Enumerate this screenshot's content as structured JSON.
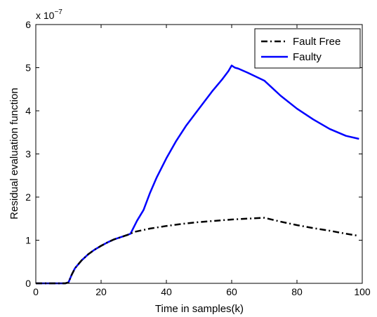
{
  "chart_data": {
    "type": "line",
    "title": "",
    "xlabel": "Time in samples(k)",
    "ylabel": "Residual evaluation function",
    "xlim": [
      0,
      100
    ],
    "ylim": [
      0,
      6
    ],
    "xticks": [
      "0",
      "20",
      "40",
      "60",
      "80",
      "100"
    ],
    "yticks": [
      "0",
      "1",
      "2",
      "3",
      "4",
      "5",
      "6"
    ],
    "y_multiplier": {
      "base": "x 10",
      "exponent": "−7"
    },
    "grid": false,
    "legend_position": "top-right",
    "series": [
      {
        "name": "Fault Free",
        "color": "#000000",
        "style": "dash-dot",
        "x": [
          0,
          9,
          10,
          11,
          12,
          14,
          16,
          18,
          20,
          22,
          24,
          26,
          28,
          29,
          30,
          35,
          40,
          45,
          50,
          55,
          60,
          65,
          70,
          75,
          80,
          85,
          90,
          95,
          99
        ],
        "y": [
          0,
          0,
          0.02,
          0.2,
          0.35,
          0.53,
          0.67,
          0.78,
          0.87,
          0.95,
          1.02,
          1.07,
          1.12,
          1.15,
          1.19,
          1.27,
          1.33,
          1.38,
          1.42,
          1.45,
          1.48,
          1.5,
          1.52,
          1.43,
          1.35,
          1.28,
          1.22,
          1.15,
          1.1
        ]
      },
      {
        "name": "Faulty",
        "color": "#0000ff",
        "style": "solid",
        "x": [
          0,
          9,
          10,
          11,
          12,
          14,
          16,
          18,
          20,
          22,
          24,
          26,
          28,
          29,
          30,
          31,
          33,
          35,
          37,
          40,
          43,
          46,
          50,
          54,
          57,
          59,
          60,
          61,
          62,
          65,
          70,
          75,
          80,
          85,
          90,
          95,
          99
        ],
        "y": [
          0,
          0,
          0.02,
          0.2,
          0.35,
          0.53,
          0.67,
          0.78,
          0.87,
          0.95,
          1.02,
          1.07,
          1.12,
          1.15,
          1.3,
          1.45,
          1.7,
          2.1,
          2.45,
          2.9,
          3.3,
          3.65,
          4.05,
          4.45,
          4.72,
          4.92,
          5.05,
          5.0,
          4.98,
          4.88,
          4.7,
          4.35,
          4.05,
          3.8,
          3.58,
          3.42,
          3.35
        ]
      }
    ]
  }
}
